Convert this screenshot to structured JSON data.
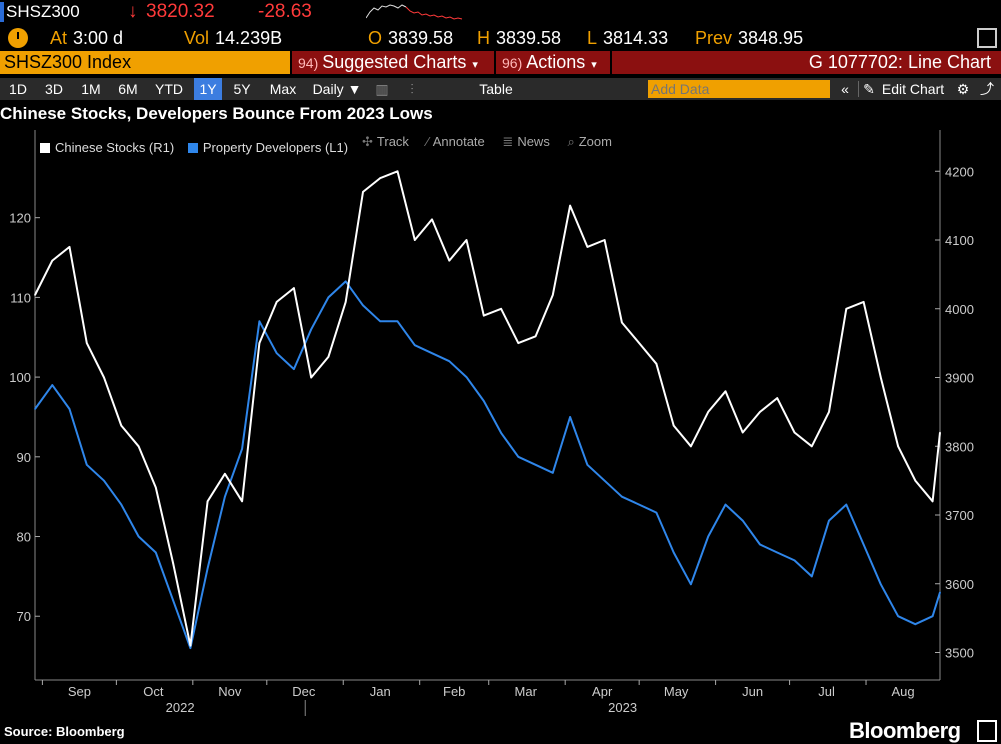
{
  "quote": {
    "ticker": "SHSZ300",
    "direction": "↓",
    "last": "3820.32",
    "change": "-28.63"
  },
  "stats": {
    "at_label": "At",
    "at_value": "3:00 d",
    "vol_label": "Vol",
    "vol_value": "14.239B",
    "open_label": "O",
    "open_value": "3839.58",
    "high_label": "H",
    "high_value": "3839.58",
    "low_label": "L",
    "low_value": "3814.33",
    "prev_label": "Prev",
    "prev_value": "3848.95"
  },
  "security_bar": {
    "security": "SHSZ300 Index",
    "suggested_num": "94)",
    "suggested_label": "Suggested Charts",
    "actions_num": "96)",
    "actions_label": "Actions",
    "function_title": "G 1077702: Line Chart"
  },
  "toolbar": {
    "ranges": [
      "1D",
      "3D",
      "1M",
      "6M",
      "YTD",
      "1Y",
      "5Y",
      "Max"
    ],
    "active_range": "1Y",
    "frequency": "Daily ▼",
    "table_label": "Table",
    "add_data_placeholder": "Add Data",
    "collapse_glyph": "«",
    "edit_chart_label": "Edit Chart"
  },
  "chart_title": "Chinese Stocks, Developers Bounce From 2023 Lows",
  "chart_tools": {
    "track": "Track",
    "annotate": "Annotate",
    "news": "News",
    "zoom": "Zoom"
  },
  "footer": {
    "source": "Source: Bloomberg",
    "brand": "Bloomberg"
  },
  "colors": {
    "background": "#000000",
    "bloomberg_orange": "#f0a000",
    "bloomberg_red": "#8b1010",
    "active_blue": "#3c7de0",
    "series_white": "#ffffff",
    "series_blue": "#2f86ea",
    "down_red": "#ff3a3a"
  },
  "chart_data": {
    "type": "line",
    "title": "Chinese Stocks, Developers Bounce From 2023 Lows",
    "x_months": [
      "Sep",
      "Oct",
      "Nov",
      "Dec",
      "Jan",
      "Feb",
      "Mar",
      "Apr",
      "May",
      "Jun",
      "Jul",
      "Aug"
    ],
    "x_years": [
      "2022",
      "2023"
    ],
    "left_axis": {
      "ticks": [
        70,
        80,
        90,
        100,
        110,
        120
      ],
      "range": [
        62,
        131
      ]
    },
    "right_axis": {
      "ticks": [
        3500,
        3600,
        3700,
        3800,
        3900,
        4000,
        4100,
        4200
      ],
      "range": [
        3460,
        4260
      ]
    },
    "grid": false,
    "legend_position": "top-left",
    "x_dates": [
      "2022-08-29",
      "2022-09-05",
      "2022-09-12",
      "2022-09-19",
      "2022-09-26",
      "2022-10-03",
      "2022-10-10",
      "2022-10-17",
      "2022-10-24",
      "2022-10-31",
      "2022-11-07",
      "2022-11-14",
      "2022-11-21",
      "2022-11-28",
      "2022-12-05",
      "2022-12-12",
      "2022-12-19",
      "2022-12-26",
      "2023-01-02",
      "2023-01-09",
      "2023-01-16",
      "2023-01-23",
      "2023-01-30",
      "2023-02-06",
      "2023-02-13",
      "2023-02-20",
      "2023-02-27",
      "2023-03-06",
      "2023-03-13",
      "2023-03-20",
      "2023-03-27",
      "2023-04-03",
      "2023-04-10",
      "2023-04-17",
      "2023-04-24",
      "2023-05-01",
      "2023-05-08",
      "2023-05-15",
      "2023-05-22",
      "2023-05-29",
      "2023-06-05",
      "2023-06-12",
      "2023-06-19",
      "2023-06-26",
      "2023-07-03",
      "2023-07-10",
      "2023-07-17",
      "2023-07-24",
      "2023-07-31",
      "2023-08-07",
      "2023-08-14",
      "2023-08-21",
      "2023-08-28",
      "2023-08-31"
    ],
    "series": [
      {
        "name": "Chinese Stocks (R1)",
        "axis": "right",
        "color": "#ffffff",
        "values": [
          4020,
          4070,
          4090,
          3950,
          3900,
          3830,
          3800,
          3740,
          3630,
          3510,
          3720,
          3760,
          3720,
          3950,
          4010,
          4030,
          3900,
          3930,
          4010,
          4170,
          4190,
          4200,
          4100,
          4130,
          4070,
          4100,
          3990,
          4000,
          3950,
          3960,
          4020,
          4150,
          4090,
          4100,
          3980,
          3950,
          3920,
          3830,
          3800,
          3850,
          3880,
          3820,
          3850,
          3870,
          3820,
          3800,
          3850,
          4000,
          4010,
          3900,
          3800,
          3750,
          3720,
          3820
        ]
      },
      {
        "name": "Property Developers (L1)",
        "axis": "left",
        "color": "#2f86ea",
        "values": [
          96,
          99,
          96,
          89,
          87,
          84,
          80,
          78,
          72,
          66,
          76,
          85,
          91,
          107,
          103,
          101,
          106,
          110,
          112,
          109,
          107,
          107,
          104,
          103,
          102,
          100,
          97,
          93,
          90,
          89,
          88,
          95,
          89,
          87,
          85,
          84,
          83,
          78,
          74,
          80,
          84,
          82,
          79,
          78,
          77,
          75,
          82,
          84,
          79,
          74,
          70,
          69,
          70,
          73
        ]
      }
    ]
  }
}
